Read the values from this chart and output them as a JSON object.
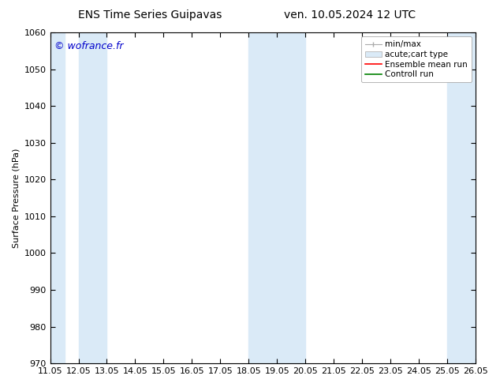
{
  "title_left": "ENS Time Series Guipavas",
  "title_right": "ven. 10.05.2024 12 UTC",
  "ylabel": "Surface Pressure (hPa)",
  "ylim": [
    970,
    1060
  ],
  "yticks": [
    970,
    980,
    990,
    1000,
    1010,
    1020,
    1030,
    1040,
    1050,
    1060
  ],
  "n_cols": 16,
  "xlabel_labels": [
    "11.05",
    "12.05",
    "13.05",
    "14.05",
    "15.05",
    "16.05",
    "17.05",
    "18.05",
    "19.05",
    "20.05",
    "21.05",
    "22.05",
    "23.05",
    "24.05",
    "25.05",
    "26.05"
  ],
  "shaded_band_cols": [
    {
      "xmin": 0,
      "xmax": 0.5
    },
    {
      "xmin": 1,
      "xmax": 2
    },
    {
      "xmin": 7,
      "xmax": 9
    },
    {
      "xmin": 14,
      "xmax": 15
    }
  ],
  "shaded_color": "#daeaf7",
  "watermark": "© wofrance.fr",
  "watermark_color": "#0000cc",
  "bg_color": "#ffffff",
  "legend_entries": [
    {
      "label": "min/max",
      "color": "#aaaaaa",
      "style": "errorbar"
    },
    {
      "label": "acute;cart type",
      "color": "#c8dff0",
      "style": "box"
    },
    {
      "label": "Ensemble mean run",
      "color": "#ff0000",
      "style": "line"
    },
    {
      "label": "Controll run",
      "color": "#008000",
      "style": "line"
    }
  ],
  "font_size_title": 10,
  "font_size_axis": 8,
  "font_size_legend": 7.5,
  "font_size_watermark": 9
}
